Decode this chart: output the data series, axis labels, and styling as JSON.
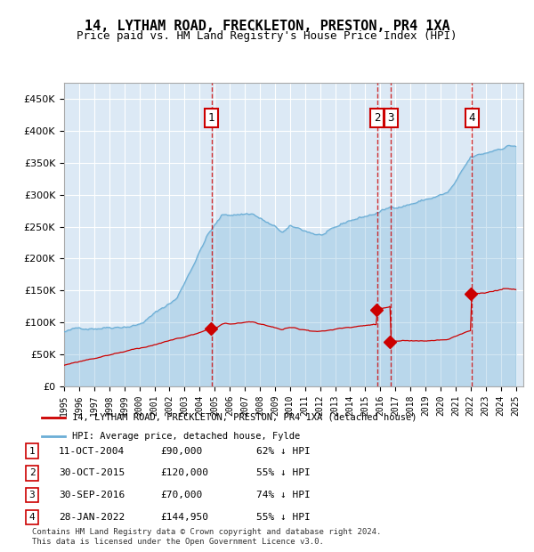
{
  "title": "14, LYTHAM ROAD, FRECKLETON, PRESTON, PR4 1XA",
  "subtitle": "Price paid vs. HM Land Registry's House Price Index (HPI)",
  "background_color": "#dce9f5",
  "plot_bg_color": "#dce9f5",
  "ylim": [
    0,
    475000
  ],
  "yticks": [
    0,
    50000,
    100000,
    150000,
    200000,
    250000,
    300000,
    350000,
    400000,
    450000
  ],
  "xlabel_years": [
    "1995",
    "1996",
    "1997",
    "1998",
    "1999",
    "2000",
    "2001",
    "2002",
    "2003",
    "2004",
    "2005",
    "2006",
    "2007",
    "2008",
    "2009",
    "2010",
    "2011",
    "2012",
    "2013",
    "2014",
    "2015",
    "2016",
    "2017",
    "2018",
    "2019",
    "2020",
    "2021",
    "2022",
    "2023",
    "2024",
    "2025"
  ],
  "hpi_color": "#6baed6",
  "price_color": "#cc0000",
  "sale_dates": [
    "2004-10-11",
    "2015-10-30",
    "2016-09-30",
    "2022-01-28"
  ],
  "sale_prices": [
    90000,
    120000,
    70000,
    144950
  ],
  "sale_labels": [
    "1",
    "2",
    "3",
    "4"
  ],
  "vline_color": "#cc0000",
  "legend_line1": "14, LYTHAM ROAD, FRECKLETON, PRESTON, PR4 1XA (detached house)",
  "legend_line2": "HPI: Average price, detached house, Fylde",
  "table_entries": [
    {
      "num": "1",
      "date": "11-OCT-2004",
      "price": "£90,000",
      "pct": "62% ↓ HPI"
    },
    {
      "num": "2",
      "date": "30-OCT-2015",
      "price": "£120,000",
      "pct": "55% ↓ HPI"
    },
    {
      "num": "3",
      "date": "30-SEP-2016",
      "price": "£70,000",
      "pct": "74% ↓ HPI"
    },
    {
      "num": "4",
      "date": "28-JAN-2022",
      "price": "£144,950",
      "pct": "55% ↓ HPI"
    }
  ],
  "footnote": "Contains HM Land Registry data © Crown copyright and database right 2024.\nThis data is licensed under the Open Government Licence v3.0.",
  "box_color": "#cc0000"
}
